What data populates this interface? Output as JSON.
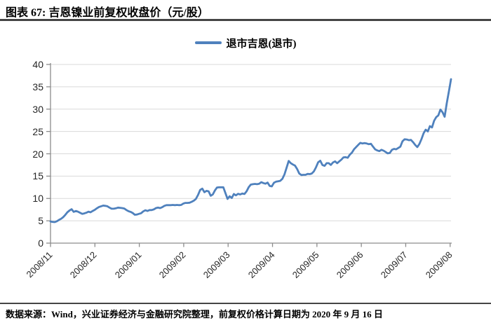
{
  "page": {
    "title": "图表 67: 吉恩镍业前复权收盘价（元/股）",
    "source_note": "数据来源：Wind，兴业证券经济与金融研究院整理，前复权价格计算日期为 2020 年 9 月 16 日"
  },
  "colors": {
    "line": "#4f81bd",
    "grid": "#d9d9d9",
    "axis": "#8c8c8c",
    "rule": "#454545",
    "tick_text": "#262626"
  },
  "chart_data": {
    "type": "line",
    "title": "吉恩镍业前复权收盘价（元/股）",
    "legend": [
      "退市吉恩(退市)"
    ],
    "legend_position": "top-center",
    "grid": "horizontal",
    "ylabel": "",
    "xlabel": "",
    "ylim": [
      0,
      40
    ],
    "yticks": [
      0,
      5,
      10,
      15,
      20,
      25,
      30,
      35,
      40
    ],
    "x_axis": {
      "unit": "months since 2008/11",
      "tick_positions": [
        0,
        1,
        2,
        3,
        4,
        5,
        6,
        7,
        8,
        9
      ],
      "tick_labels": [
        "2008/11",
        "2008/12",
        "2009/01",
        "2009/02",
        "2009/03",
        "2009/04",
        "2009/05",
        "2009/06",
        "2009/07",
        "2009/08"
      ],
      "xlim": [
        0,
        9.02
      ]
    },
    "series": [
      {
        "name": "退市吉恩(退市)",
        "x_start": 0,
        "x_step": 0.04747,
        "values": [
          4.85,
          4.75,
          4.7,
          4.9,
          5.2,
          5.45,
          5.8,
          6.3,
          6.9,
          7.3,
          7.6,
          7.0,
          7.2,
          7.05,
          6.8,
          6.55,
          6.65,
          6.8,
          7.05,
          6.9,
          7.2,
          7.45,
          7.8,
          8.1,
          8.25,
          8.4,
          8.35,
          8.25,
          7.95,
          7.7,
          7.7,
          7.8,
          7.95,
          7.9,
          7.85,
          7.75,
          7.4,
          7.15,
          7.0,
          6.75,
          6.35,
          6.4,
          6.55,
          6.7,
          7.1,
          7.35,
          7.2,
          7.4,
          7.4,
          7.55,
          7.85,
          7.95,
          7.85,
          8.05,
          8.35,
          8.5,
          8.5,
          8.5,
          8.55,
          8.5,
          8.55,
          8.5,
          8.55,
          8.85,
          9.0,
          9.0,
          9.05,
          9.25,
          9.5,
          9.9,
          10.8,
          11.9,
          12.2,
          11.4,
          11.7,
          11.6,
          10.6,
          10.9,
          11.8,
          12.45,
          12.5,
          12.5,
          12.5,
          11.2,
          9.9,
          10.5,
          10.1,
          11.0,
          10.7,
          11.05,
          10.9,
          11.1,
          11.0,
          11.6,
          12.5,
          13.1,
          13.2,
          13.25,
          13.2,
          13.3,
          13.65,
          13.45,
          13.3,
          13.55,
          12.8,
          12.7,
          13.5,
          13.75,
          13.85,
          13.95,
          14.4,
          15.4,
          16.9,
          18.4,
          17.9,
          17.6,
          17.35,
          16.6,
          15.6,
          15.25,
          15.3,
          15.3,
          15.5,
          15.45,
          15.6,
          16.1,
          17.0,
          18.1,
          18.45,
          17.5,
          17.3,
          17.9,
          17.9,
          17.5,
          18.05,
          18.3,
          17.9,
          18.3,
          18.7,
          19.2,
          19.25,
          19.1,
          19.8,
          20.25,
          21.0,
          21.5,
          22.0,
          22.45,
          22.3,
          22.4,
          22.3,
          22.15,
          22.25,
          21.6,
          21.0,
          20.75,
          20.6,
          20.9,
          20.7,
          20.4,
          20.1,
          20.2,
          20.9,
          21.1,
          21.0,
          21.3,
          21.6,
          22.8,
          23.25,
          23.2,
          23.05,
          23.1,
          22.6,
          22.0,
          21.5,
          22.2,
          23.3,
          24.6,
          25.4,
          25.0,
          26.2,
          25.9,
          27.4,
          28.2,
          28.6,
          29.9,
          29.3,
          28.3,
          31.3,
          34.0,
          36.7
        ]
      }
    ]
  }
}
